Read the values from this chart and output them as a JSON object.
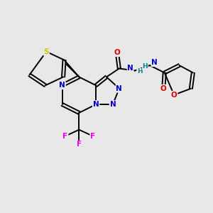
{
  "bg_color": "#e8e8e8",
  "atom_colors": {
    "C": "#000000",
    "N": "#0000cc",
    "O": "#dd0000",
    "S": "#cccc00",
    "F": "#ee00ee",
    "H": "#008888"
  },
  "bond_color": "#000000",
  "bond_lw": 1.4,
  "figsize": [
    3.0,
    3.0
  ],
  "dpi": 100
}
